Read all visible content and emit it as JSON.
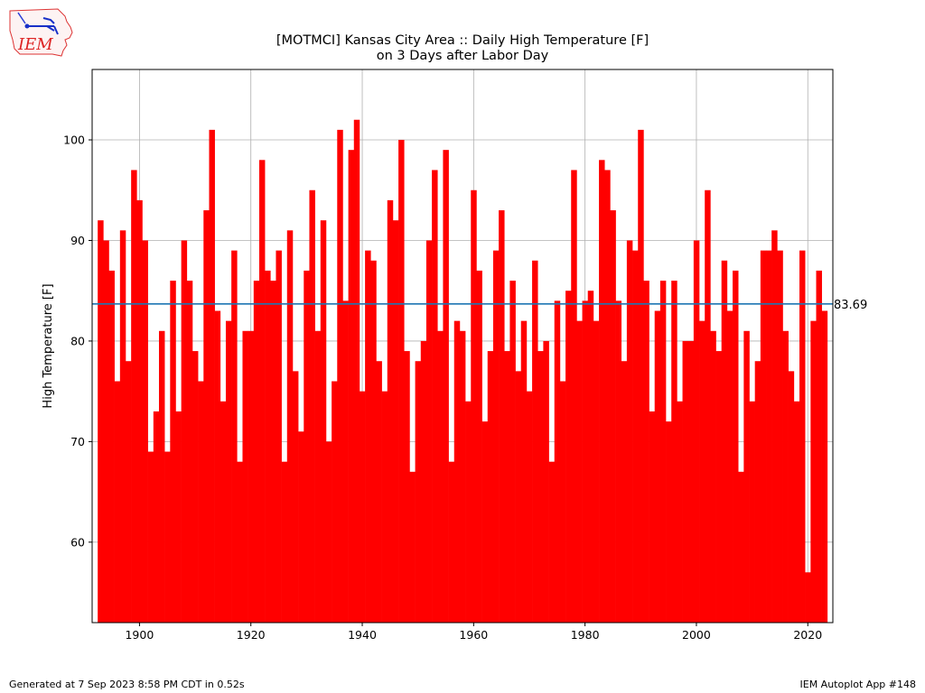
{
  "header": {
    "title_line1": "[MOTMCI] Kansas City Area :: Daily High Temperature [F]",
    "title_line2": "on 3 Days after Labor Day",
    "logo_text": "IEM"
  },
  "footer": {
    "generated": "Generated at 7 Sep 2023 8:58 PM CDT in 0.52s",
    "app": "IEM Autoplot App #148"
  },
  "chart_data": {
    "type": "bar",
    "title": "[MOTMCI] Kansas City Area :: Daily High Temperature [F] on 3 Days after Labor Day",
    "xlabel": "",
    "ylabel": "High Temperature [F]",
    "xlim": [
      1891.5,
      2024.5
    ],
    "ylim": [
      52,
      107
    ],
    "xticks": [
      1900,
      1920,
      1940,
      1960,
      1980,
      2000,
      2020
    ],
    "yticks": [
      60,
      70,
      80,
      90,
      100
    ],
    "grid": true,
    "bar_color": "#ff0000",
    "mean_line": {
      "value": 83.69,
      "label": "83.69",
      "color": "#1f77b4"
    },
    "x": [
      1893,
      1894,
      1895,
      1896,
      1897,
      1898,
      1899,
      1900,
      1901,
      1902,
      1903,
      1904,
      1905,
      1906,
      1907,
      1908,
      1909,
      1910,
      1911,
      1912,
      1913,
      1914,
      1915,
      1916,
      1917,
      1918,
      1919,
      1920,
      1921,
      1922,
      1923,
      1924,
      1925,
      1926,
      1927,
      1928,
      1929,
      1930,
      1931,
      1932,
      1933,
      1934,
      1935,
      1936,
      1937,
      1938,
      1939,
      1940,
      1941,
      1942,
      1943,
      1944,
      1945,
      1946,
      1947,
      1948,
      1949,
      1950,
      1951,
      1952,
      1953,
      1954,
      1955,
      1956,
      1957,
      1958,
      1959,
      1960,
      1961,
      1962,
      1963,
      1964,
      1965,
      1966,
      1967,
      1968,
      1969,
      1970,
      1971,
      1972,
      1973,
      1974,
      1975,
      1976,
      1977,
      1978,
      1979,
      1980,
      1981,
      1982,
      1983,
      1984,
      1985,
      1986,
      1987,
      1988,
      1989,
      1990,
      1991,
      1992,
      1993,
      1994,
      1995,
      1996,
      1997,
      1998,
      1999,
      2000,
      2001,
      2002,
      2003,
      2004,
      2005,
      2006,
      2007,
      2008,
      2009,
      2010,
      2011,
      2012,
      2013,
      2014,
      2015,
      2016,
      2017,
      2018,
      2019,
      2020,
      2021,
      2022,
      2023
    ],
    "values": [
      92,
      90,
      87,
      76,
      91,
      78,
      97,
      94,
      90,
      69,
      73,
      81,
      69,
      86,
      73,
      90,
      86,
      79,
      76,
      93,
      101,
      83,
      74,
      82,
      89,
      68,
      81,
      81,
      86,
      98,
      87,
      86,
      89,
      68,
      91,
      77,
      71,
      87,
      95,
      81,
      92,
      70,
      76,
      101,
      84,
      99,
      102,
      75,
      89,
      88,
      78,
      75,
      94,
      92,
      100,
      79,
      67,
      78,
      80,
      90,
      97,
      81,
      99,
      68,
      82,
      81,
      74,
      95,
      87,
      72,
      79,
      89,
      93,
      79,
      86,
      77,
      82,
      75,
      88,
      79,
      80,
      68,
      84,
      76,
      85,
      97,
      82,
      84,
      85,
      82,
      98,
      97,
      93,
      84,
      78,
      90,
      89,
      101,
      86,
      73,
      83,
      86,
      72,
      86,
      74,
      80,
      80,
      90,
      82,
      95,
      81,
      79,
      88,
      83,
      87,
      67,
      81,
      74,
      78,
      89,
      89,
      91,
      89,
      81,
      77,
      74,
      89,
      57,
      82,
      87,
      83
    ]
  }
}
